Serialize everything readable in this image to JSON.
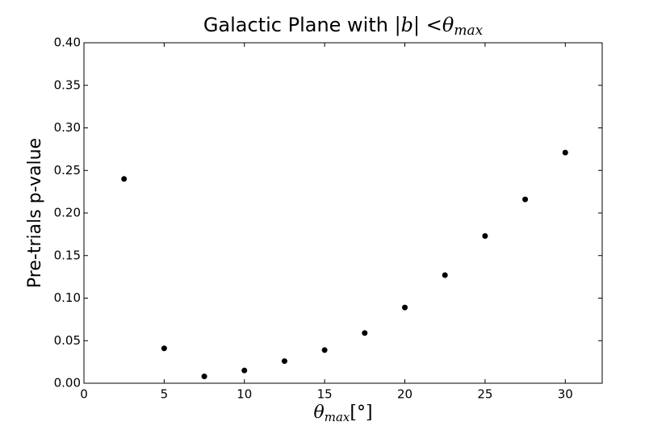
{
  "chart_data": {
    "type": "scatter",
    "title": "Galactic Plane with ",
    "title_math": "|b| <θ",
    "title_sub": "max",
    "x_label": "θ",
    "x_label_sub": "max",
    "x_label_unit": "[°]",
    "y_label": "Pre-trials p-value",
    "x": [
      2.5,
      5,
      7.5,
      10,
      12.5,
      15,
      17.5,
      20,
      22.5,
      25,
      27.5,
      30
    ],
    "values": [
      0.24,
      0.041,
      0.008,
      0.015,
      0.026,
      0.039,
      0.059,
      0.089,
      0.127,
      0.173,
      0.216,
      0.271
    ],
    "color": "#000000",
    "xlim": [
      0,
      32.3
    ],
    "xticks": [
      0,
      5,
      10,
      15,
      20,
      25,
      30
    ],
    "ylim": [
      0,
      0.4
    ],
    "yticks": [
      {
        "value": 0,
        "label": "0.00"
      },
      {
        "value": 0.05,
        "label": "0.05"
      },
      {
        "value": 0.1,
        "label": "0.10"
      },
      {
        "value": 0.15,
        "label": "0.15"
      },
      {
        "value": 0.2,
        "label": "0.20"
      },
      {
        "value": 0.25,
        "label": "0.25"
      },
      {
        "value": 0.3,
        "label": "0.30"
      },
      {
        "value": 0.35,
        "label": "0.35"
      },
      {
        "value": 0.4,
        "label": "0.40"
      }
    ],
    "grid": false
  }
}
